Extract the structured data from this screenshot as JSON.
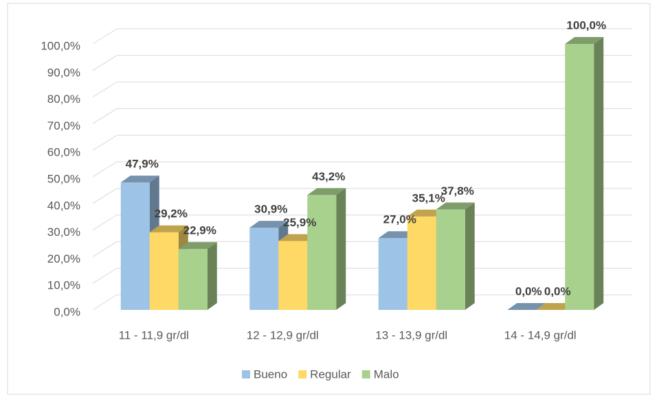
{
  "chart_data": {
    "type": "bar3d",
    "categories": [
      "11 - 11,9 gr/dl",
      "12 - 12,9 gr/dl",
      "13 - 13,9 gr/dl",
      "14 - 14,9 gr/dl"
    ],
    "series": [
      {
        "name": "Bueno",
        "color": "#9dc3e6",
        "values": [
          47.9,
          30.9,
          27.0,
          0.0
        ],
        "value_labels": [
          "47,9%",
          "30,9%",
          "27,0%",
          "0,0%"
        ]
      },
      {
        "name": "Regular",
        "color": "#ffd966",
        "values": [
          29.2,
          25.9,
          35.1,
          0.0
        ],
        "value_labels": [
          "29,2%",
          "25,9%",
          "35,1%",
          "0,0%"
        ]
      },
      {
        "name": "Malo",
        "color": "#a9d18e",
        "values": [
          22.9,
          43.2,
          37.8,
          100.0
        ],
        "value_labels": [
          "22,9%",
          "43,2%",
          "37,8%",
          "100,0%"
        ]
      }
    ],
    "ylim": [
      0,
      100
    ],
    "yticks": [
      {
        "value": 0,
        "label": "0,0%"
      },
      {
        "value": 10,
        "label": "10,0%"
      },
      {
        "value": 20,
        "label": "20,0%"
      },
      {
        "value": 30,
        "label": "30,0%"
      },
      {
        "value": 40,
        "label": "40,0%"
      },
      {
        "value": 50,
        "label": "50,0%"
      },
      {
        "value": 60,
        "label": "60,0%"
      },
      {
        "value": 70,
        "label": "70,0%"
      },
      {
        "value": 80,
        "label": "80,0%"
      },
      {
        "value": 90,
        "label": "90,0%"
      },
      {
        "value": 100,
        "label": "100,0%"
      }
    ],
    "grid": true,
    "legend": "bottom"
  }
}
